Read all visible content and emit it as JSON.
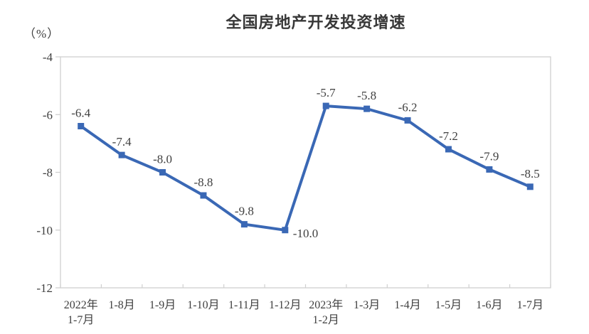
{
  "chart": {
    "title": "全国房地产开发投资增速",
    "unit_label": "（%）"
  },
  "chart_data": {
    "type": "line",
    "title": "全国房地产开发投资增速",
    "ylabel": "（%）",
    "xlabel": "",
    "categories": [
      "2022年\n1-7月",
      "1-8月",
      "1-9月",
      "1-10月",
      "1-11月",
      "1-12月",
      "2023年\n1-2月",
      "1-3月",
      "1-4月",
      "1-5月",
      "1-6月",
      "1-7月"
    ],
    "values": [
      -6.4,
      -7.4,
      -8.0,
      -8.8,
      -9.8,
      -10.0,
      -5.7,
      -5.8,
      -6.2,
      -7.2,
      -7.9,
      -8.5
    ],
    "data_labels": [
      "-6.4",
      "-7.4",
      "-8.0",
      "-8.8",
      "-9.8",
      "-10.0",
      "-5.7",
      "-5.8",
      "-6.2",
      "-7.2",
      "-7.9",
      "-8.5"
    ],
    "label_positions": [
      "above",
      "above",
      "above",
      "above",
      "above",
      "right",
      "above",
      "above",
      "above",
      "above",
      "above",
      "above"
    ],
    "ylim": [
      -12,
      -4
    ],
    "yticks": [
      -4,
      -6,
      -8,
      -10,
      -12
    ],
    "grid": false,
    "legend_position": "none",
    "marker": "square",
    "colors": {
      "line": "#3A68B5",
      "marker": "#3A68B5",
      "axis": "#D0D0D0",
      "tick_text": "#404040",
      "data_label_text": "#404040",
      "title_text": "#383838",
      "background": "#FFFFFF"
    }
  }
}
